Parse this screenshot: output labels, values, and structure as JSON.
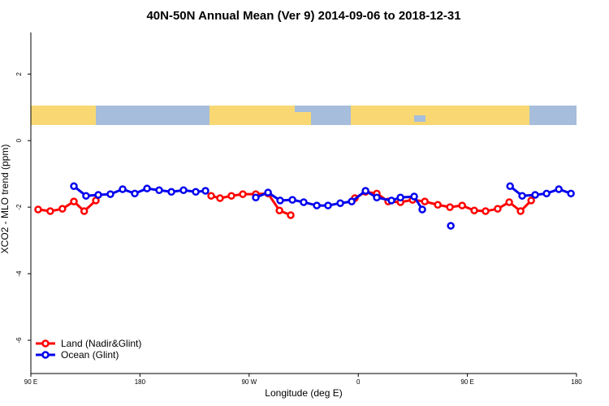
{
  "chart_data": {
    "type": "line",
    "title": "40N-50N Annual Mean (Ver 9)   2014-09-06 to 2018-12-31",
    "x_label": "Longitude (deg E)",
    "y_label": "XCO2 - MLO trend (ppm)",
    "xlim": [
      90,
      540
    ],
    "ylim": [
      -7,
      3.25
    ],
    "xticks": [
      {
        "value": 90,
        "label": "90 E"
      },
      180,
      {
        "value": 270,
        "label": "90 W"
      },
      {
        "value": 360,
        "label": "0"
      },
      {
        "value": 450,
        "label": "90 E"
      },
      {
        "value": 540,
        "label": "180"
      }
    ],
    "yticks": [
      -6,
      -4,
      -2,
      0,
      2
    ],
    "legend": "bottom-left",
    "series": [
      {
        "name": "Land (Nadir&Glint)",
        "color": "#ff0000",
        "x": [
          96,
          106,
          116,
          125.5,
          134,
          143.6,
          190,
          238.7,
          246,
          255.4,
          264.8,
          275.5,
          285.6,
          295,
          304.3,
          330,
          357.2,
          366,
          375.3,
          384.7,
          394.8,
          404.8,
          414.9,
          425.6,
          435.6,
          445.7,
          455.7,
          465,
          475,
          484.5,
          493.9,
          502.6
        ],
        "values": [
          -2.07,
          -2.12,
          -2.05,
          -1.83,
          -2.12,
          -1.8,
          null,
          -1.66,
          -1.73,
          -1.66,
          -1.61,
          -1.61,
          -1.59,
          -2.1,
          -2.24,
          null,
          -1.73,
          -1.54,
          -1.59,
          -1.83,
          -1.85,
          -1.78,
          -1.83,
          -1.93,
          -2.0,
          -1.95,
          -2.1,
          -2.12,
          -2.05,
          -1.85,
          -2.12,
          -1.8
        ]
      },
      {
        "name": "Ocean (Glint)",
        "color": "#0000ee",
        "x": [
          125.5,
          135.5,
          145.6,
          155.6,
          165.7,
          175.7,
          185.8,
          195.8,
          205.9,
          215.9,
          226,
          234,
          255,
          275.5,
          285.6,
          295.6,
          305.7,
          315,
          325.8,
          335.1,
          345.2,
          354.6,
          366,
          375.3,
          387.4,
          394.8,
          406.1,
          412.8,
          425,
          436.3,
          460,
          485.2,
          495.2,
          505.9,
          515.3,
          525.4,
          535.4
        ],
        "values": [
          -1.37,
          -1.66,
          -1.63,
          -1.61,
          -1.46,
          -1.59,
          -1.44,
          -1.49,
          -1.54,
          -1.49,
          -1.54,
          -1.51,
          null,
          -1.71,
          -1.56,
          -1.8,
          -1.78,
          -1.85,
          -1.95,
          -1.95,
          -1.88,
          -1.83,
          -1.51,
          -1.71,
          -1.8,
          -1.71,
          -1.68,
          -2.07,
          null,
          -2.56,
          null,
          -1.37,
          -1.66,
          -1.63,
          -1.59,
          -1.46,
          -1.59
        ]
      }
    ]
  }
}
